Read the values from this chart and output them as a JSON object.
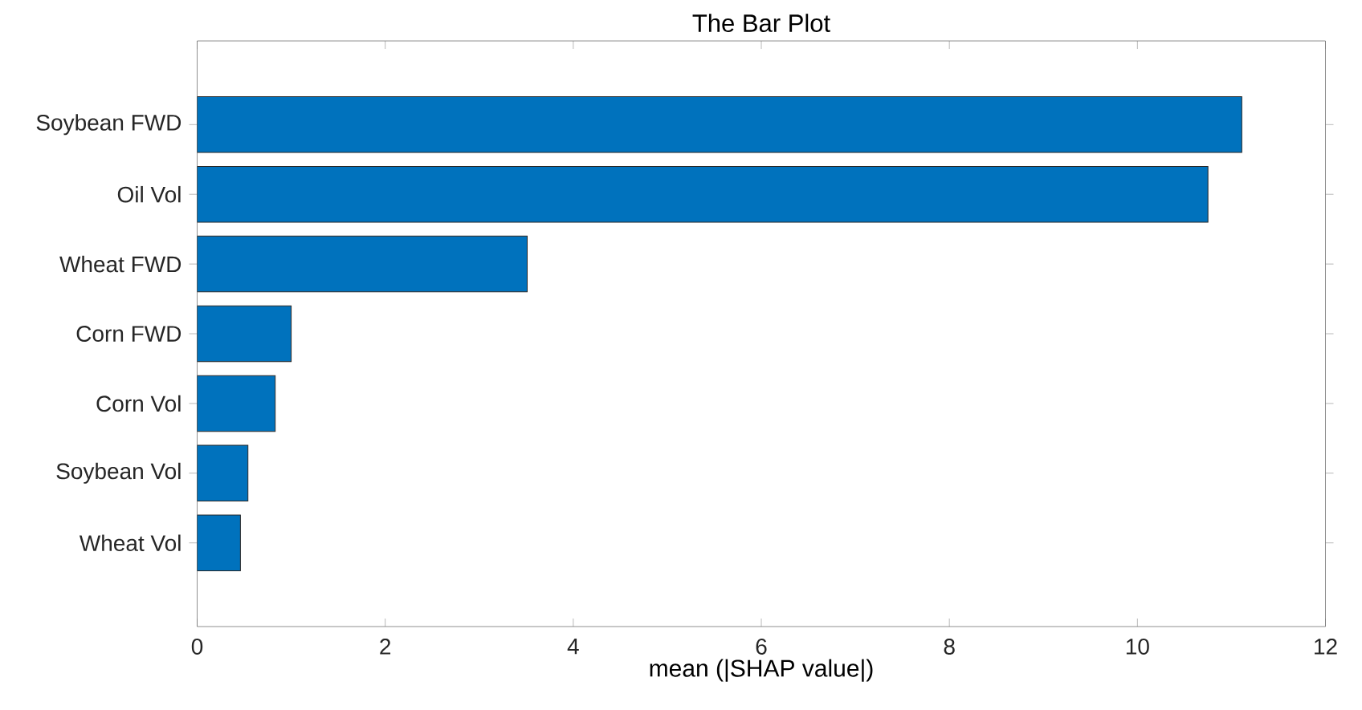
{
  "chart_data": {
    "type": "bar",
    "orientation": "horizontal",
    "title": "The Bar Plot",
    "xlabel": "mean (|SHAP value|)",
    "categories": [
      "Soybean FWD",
      "Oil Vol",
      "Wheat FWD",
      "Corn FWD",
      "Corn Vol",
      "Soybean Vol",
      "Wheat Vol"
    ],
    "values": [
      11.11,
      10.75,
      3.51,
      1.0,
      0.83,
      0.54,
      0.46
    ],
    "color": "#0072bd",
    "xlim": [
      0,
      12
    ],
    "xticks": [
      0,
      2,
      4,
      6,
      8,
      10,
      12
    ],
    "grid": false
  }
}
